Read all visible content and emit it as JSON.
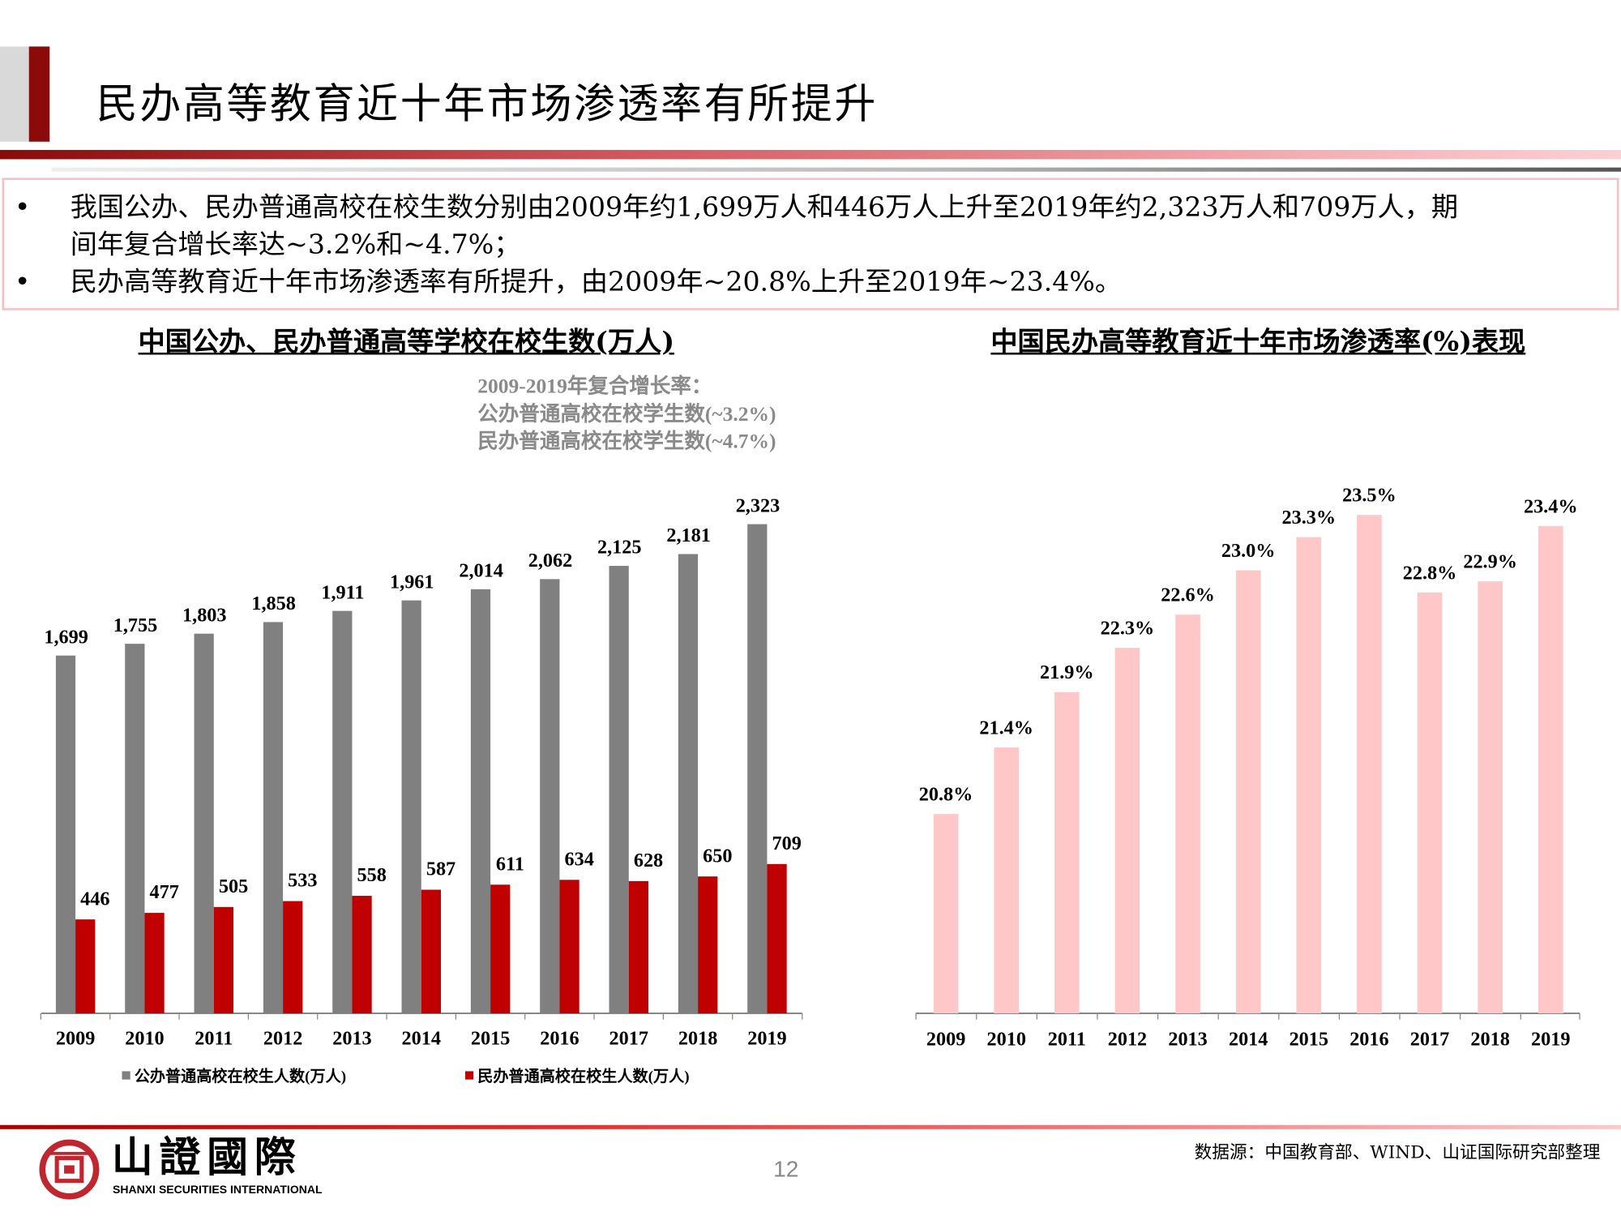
{
  "header": {
    "title": "民办高等教育近十年市场渗透率有所提升"
  },
  "bullets": [
    "我国公办、民办普通高校在校生数分别由2009年约1,699万人和446万人上升至2019年约2,323万人和709万人，期",
    "间年复合增长率达~3.2%和~4.7%；",
    "民办高等教育近十年市场渗透率有所提升，由2009年~20.8%上升至2019年~23.4%。"
  ],
  "annotation": [
    "2009-2019年复合增长率：",
    "公办普通高校在校学生数(~3.2%)",
    "民办普通高校在校学生数(~4.7%)"
  ],
  "chart_data": [
    {
      "type": "bar",
      "title": "中国公办、民办普通高等学校在校生数(万人)",
      "categories": [
        "2009",
        "2010",
        "2011",
        "2012",
        "2013",
        "2014",
        "2015",
        "2016",
        "2017",
        "2018",
        "2019"
      ],
      "series": [
        {
          "name": "公办普通高校在校生人数(万人)",
          "color": "#808080",
          "values": [
            1699,
            1755,
            1803,
            1858,
            1911,
            1961,
            2014,
            2062,
            2125,
            2181,
            2323
          ],
          "labels": [
            "1,699",
            "1,755",
            "1,803",
            "1,858",
            "1,911",
            "1,961",
            "2,014",
            "2,062",
            "2,125",
            "2,181",
            "2,323"
          ]
        },
        {
          "name": "民办普通高校在校生人数(万人)",
          "color": "#c00000",
          "values": [
            446,
            477,
            505,
            533,
            558,
            587,
            611,
            634,
            628,
            650,
            709
          ],
          "labels": [
            "446",
            "477",
            "505",
            "533",
            "558",
            "587",
            "611",
            "634",
            "628",
            "650",
            "709"
          ]
        }
      ],
      "ylim": [
        0,
        2323
      ],
      "legend": "bottom",
      "grid": false
    },
    {
      "type": "bar",
      "title": "中国民办高等教育近十年市场渗透率(%)表现",
      "categories": [
        "2009",
        "2010",
        "2011",
        "2012",
        "2013",
        "2014",
        "2015",
        "2016",
        "2017",
        "2018",
        "2019"
      ],
      "series": [
        {
          "color": "#ffc7c7",
          "values": [
            20.8,
            21.4,
            21.9,
            22.3,
            22.6,
            23.0,
            23.3,
            23.5,
            22.8,
            22.9,
            23.4
          ],
          "labels": [
            "20.8%",
            "21.4%",
            "21.9%",
            "22.3%",
            "22.6%",
            "23.0%",
            "23.3%",
            "23.5%",
            "22.8%",
            "22.9%",
            "23.4%"
          ]
        }
      ],
      "ylim": [
        19.0,
        23.5
      ],
      "grid": false
    }
  ],
  "footer": {
    "logo_text": "山證國際",
    "logo_sub": "SHANXI SECURITIES INTERNATIONAL",
    "page": "12",
    "source": "数据源：中国教育部、WIND、山证国际研究部整理"
  }
}
